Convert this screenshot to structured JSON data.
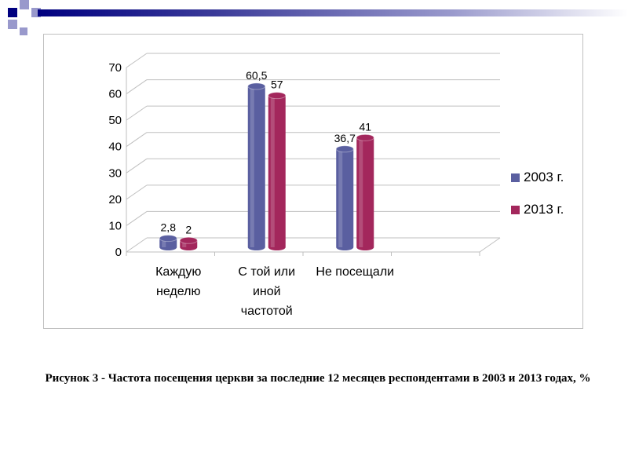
{
  "caption": "Рисунок 3 - Частота  посещения церкви за последние 12 месяцев респондентами в 2003 и 2013 годах, %",
  "colors": {
    "deco_dark": "#000080",
    "deco_light": "#9999cc",
    "series_2003": "#5a5fa0",
    "series_2013": "#a3275c",
    "grid": "#bfbfbf"
  },
  "chart_data": {
    "type": "bar",
    "categories": [
      "Каждую неделю",
      "С той или иной частотой",
      "Не посещали"
    ],
    "category_lines": [
      [
        "Каждую",
        "неделю"
      ],
      [
        "С той или",
        "иной",
        "частотой"
      ],
      [
        "Не посещали"
      ]
    ],
    "series": [
      {
        "name": "2003 г.",
        "values": [
          2.8,
          60.5,
          36.7
        ],
        "labels": [
          "2,8",
          "60,5",
          "36,7"
        ]
      },
      {
        "name": "2013 г.",
        "values": [
          2,
          57,
          41
        ],
        "labels": [
          "2",
          "57",
          "41"
        ]
      }
    ],
    "ylim": [
      0,
      70
    ],
    "yticks": [
      "0",
      "10",
      "20",
      "30",
      "40",
      "50",
      "60",
      "70"
    ],
    "grid": true,
    "legend": "right",
    "style": "3d-cylinder"
  }
}
